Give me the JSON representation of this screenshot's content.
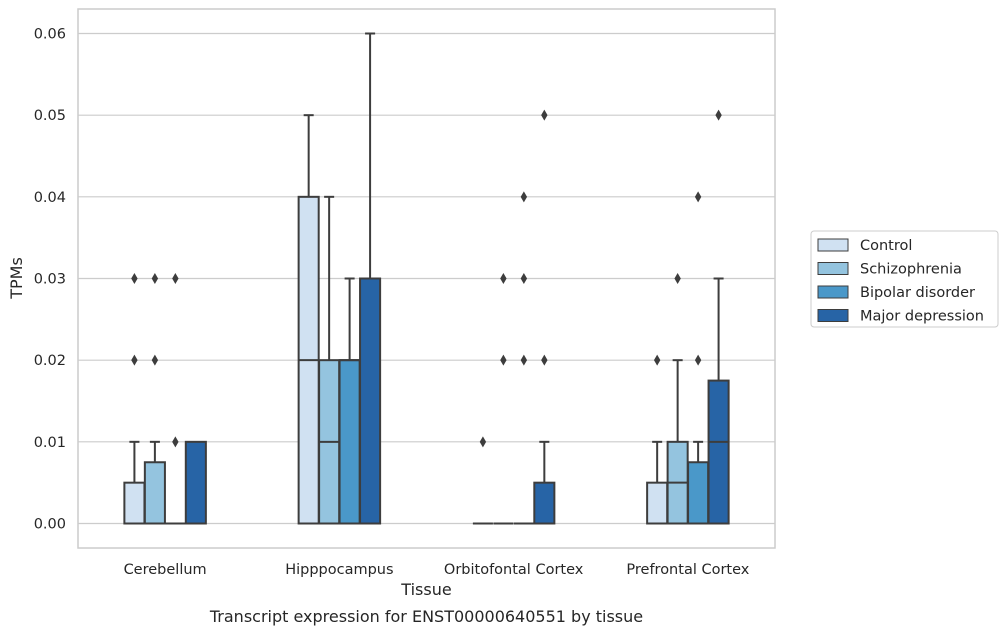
{
  "caption": "Transcript expression for ENST00000640551 by tissue",
  "chart_data": {
    "type": "box",
    "title": "",
    "xlabel": "Tissue",
    "ylabel": "TPMs",
    "ylim": [
      -0.003,
      0.063
    ],
    "yticks": [
      "0.00",
      "0.01",
      "0.02",
      "0.03",
      "0.04",
      "0.05",
      "0.06"
    ],
    "ytick_values": [
      0,
      0.01,
      0.02,
      0.03,
      0.04,
      0.05,
      0.06
    ],
    "grid": true,
    "legend_position": "right",
    "categories": [
      "Cerebellum",
      "Hipppocampus",
      "Orbitofontal Cortex",
      "Prefrontal Cortex"
    ],
    "series": [
      {
        "name": "Control",
        "color": "#d0e1f2",
        "boxes": [
          {
            "q1": 0,
            "median": 0,
            "q3": 0.005,
            "whisker_low": 0,
            "whisker_high": 0.01,
            "outliers": [
              0.02,
              0.03
            ]
          },
          {
            "q1": 0,
            "median": 0.02,
            "q3": 0.04,
            "whisker_low": 0,
            "whisker_high": 0.05,
            "outliers": []
          },
          {
            "q1": 0,
            "median": 0,
            "q3": 0,
            "whisker_low": 0,
            "whisker_high": 0,
            "outliers": [
              0.01
            ]
          },
          {
            "q1": 0,
            "median": 0,
            "q3": 0.005,
            "whisker_low": 0,
            "whisker_high": 0.01,
            "outliers": [
              0.02
            ]
          }
        ]
      },
      {
        "name": "Schizophrenia",
        "color": "#94c4df",
        "boxes": [
          {
            "q1": 0,
            "median": 0,
            "q3": 0.0075,
            "whisker_low": 0,
            "whisker_high": 0.01,
            "outliers": [
              0.02,
              0.03
            ]
          },
          {
            "q1": 0,
            "median": 0.01,
            "q3": 0.02,
            "whisker_low": 0,
            "whisker_high": 0.04,
            "outliers": []
          },
          {
            "q1": 0,
            "median": 0,
            "q3": 0,
            "whisker_low": 0,
            "whisker_high": 0,
            "outliers": [
              0.02,
              0.03
            ]
          },
          {
            "q1": 0,
            "median": 0.005,
            "q3": 0.01,
            "whisker_low": 0,
            "whisker_high": 0.02,
            "outliers": [
              0.03
            ]
          }
        ]
      },
      {
        "name": "Bipolar disorder",
        "color": "#4a98c9",
        "boxes": [
          {
            "q1": 0,
            "median": 0,
            "q3": 0,
            "whisker_low": 0,
            "whisker_high": 0,
            "outliers": [
              0.01,
              0.03
            ]
          },
          {
            "q1": 0,
            "median": 0.02,
            "q3": 0.02,
            "whisker_low": 0,
            "whisker_high": 0.03,
            "outliers": []
          },
          {
            "q1": 0,
            "median": 0,
            "q3": 0,
            "whisker_low": 0,
            "whisker_high": 0,
            "outliers": [
              0.02,
              0.03,
              0.04
            ]
          },
          {
            "q1": 0,
            "median": 0,
            "q3": 0.0075,
            "whisker_low": 0,
            "whisker_high": 0.01,
            "outliers": [
              0.02,
              0.04
            ]
          }
        ]
      },
      {
        "name": "Major depression",
        "color": "#2764a6",
        "boxes": [
          {
            "q1": 0,
            "median": 0,
            "q3": 0.01,
            "whisker_low": 0,
            "whisker_high": 0.01,
            "outliers": []
          },
          {
            "q1": 0,
            "median": 0.03,
            "q3": 0.03,
            "whisker_low": 0,
            "whisker_high": 0.06,
            "outliers": []
          },
          {
            "q1": 0,
            "median": 0,
            "q3": 0.005,
            "whisker_low": 0,
            "whisker_high": 0.01,
            "outliers": [
              0.02,
              0.05
            ]
          },
          {
            "q1": 0,
            "median": 0.01,
            "q3": 0.0175,
            "whisker_low": 0,
            "whisker_high": 0.03,
            "outliers": [
              0.05
            ]
          }
        ]
      }
    ]
  }
}
